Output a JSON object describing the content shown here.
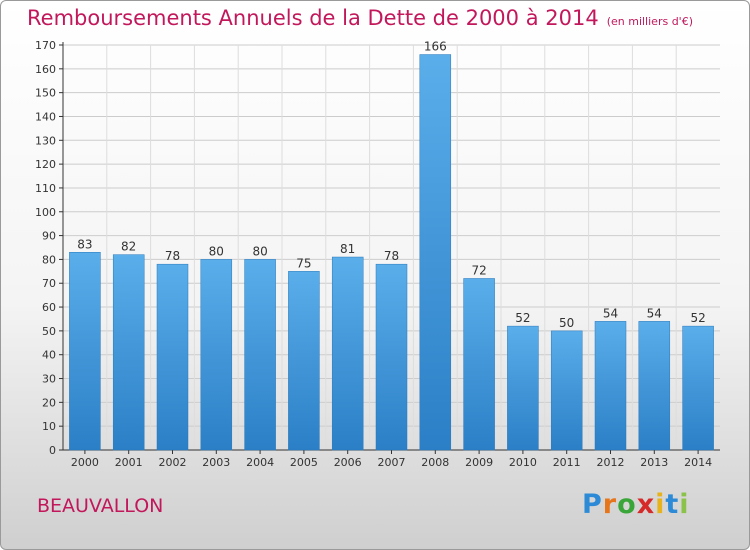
{
  "title": "Remboursements Annuels de la Dette de 2000 à 2014",
  "unit": "(en milliers d'€)",
  "commune": "BEAUVALLON",
  "logo": {
    "letters": [
      {
        "char": "P",
        "color": "#2d8ad6"
      },
      {
        "char": "r",
        "color": "#e6761c"
      },
      {
        "char": "o",
        "color": "#3aa63a"
      },
      {
        "char": "x",
        "color": "#d62a2a"
      },
      {
        "char": "i",
        "color": "#e6b31c"
      },
      {
        "char": "t",
        "color": "#2d8ad6"
      },
      {
        "char": "i",
        "color": "#8bc34a"
      }
    ]
  },
  "chart_data": {
    "type": "bar",
    "categories": [
      "2000",
      "2001",
      "2002",
      "2003",
      "2004",
      "2005",
      "2006",
      "2007",
      "2008",
      "2009",
      "2010",
      "2011",
      "2012",
      "2013",
      "2014"
    ],
    "values": [
      83,
      82,
      78,
      80,
      80,
      75,
      81,
      78,
      166,
      72,
      52,
      50,
      54,
      54,
      52
    ],
    "ylim": [
      0,
      170
    ],
    "yticks": [
      0,
      10,
      20,
      30,
      40,
      50,
      60,
      70,
      80,
      90,
      100,
      110,
      120,
      130,
      140,
      150,
      160,
      170
    ],
    "grid": true,
    "bar_color_top": "#5aaeea",
    "bar_color_bottom": "#2b7fc6"
  }
}
